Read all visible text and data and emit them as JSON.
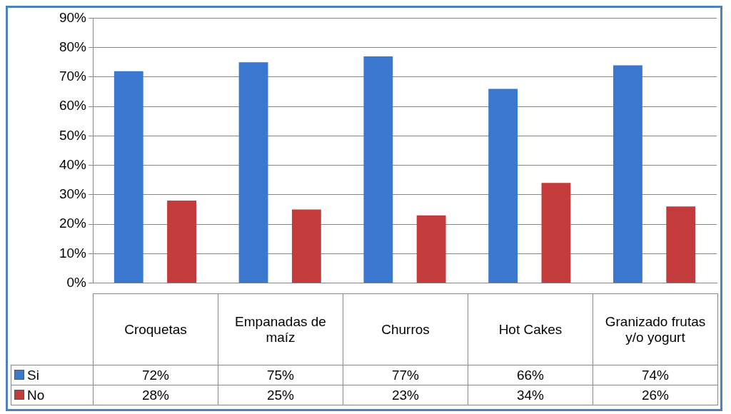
{
  "chart_data": {
    "type": "bar",
    "categories": [
      "Croquetas",
      "Empanadas de maíz",
      "Churros",
      "Hot Cakes",
      "Granizado frutas y/o yogurt"
    ],
    "series": [
      {
        "name": "Si",
        "color": "#3a78cf",
        "values": [
          72,
          75,
          77,
          66,
          74
        ],
        "value_labels": [
          "72%",
          "75%",
          "77%",
          "66%",
          "74%"
        ]
      },
      {
        "name": "No",
        "color": "#c43b3b",
        "values": [
          28,
          25,
          23,
          34,
          26
        ],
        "value_labels": [
          "28%",
          "25%",
          "23%",
          "34%",
          "26%"
        ]
      }
    ],
    "ylim": [
      0,
      90
    ],
    "yticks": [
      {
        "value": 0,
        "label": "0%"
      },
      {
        "value": 10,
        "label": "10%"
      },
      {
        "value": 20,
        "label": "20%"
      },
      {
        "value": 30,
        "label": "30%"
      },
      {
        "value": 40,
        "label": "40%"
      },
      {
        "value": 50,
        "label": "50%"
      },
      {
        "value": 60,
        "label": "60%"
      },
      {
        "value": 70,
        "label": "70%"
      },
      {
        "value": 80,
        "label": "80%"
      },
      {
        "value": 90,
        "label": "90%"
      }
    ],
    "grid": "y",
    "legend": "bottom"
  }
}
